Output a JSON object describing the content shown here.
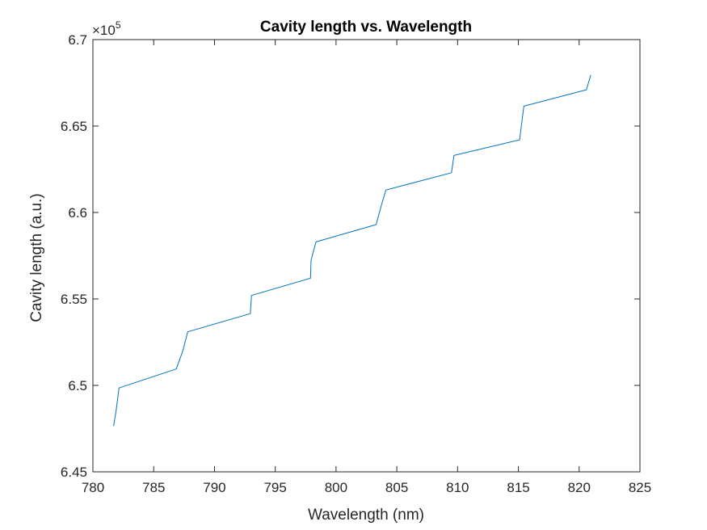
{
  "chart_data": {
    "type": "line",
    "title": "Cavity length vs. Wavelength",
    "xlabel": "Wavelength (nm)",
    "ylabel": "Cavity length (a.u.)",
    "xlim": [
      780,
      825
    ],
    "ylim": [
      645000,
      670000
    ],
    "xticks": [
      780,
      785,
      790,
      795,
      800,
      805,
      810,
      815,
      820,
      825
    ],
    "xtick_labels": [
      "780",
      "785",
      "790",
      "795",
      "800",
      "805",
      "810",
      "815",
      "820",
      "825"
    ],
    "yticks": [
      645000,
      650000,
      655000,
      660000,
      665000,
      670000
    ],
    "ytick_labels": [
      "6.45",
      "6.5",
      "6.55",
      "6.6",
      "6.65",
      "6.7"
    ],
    "y_exponent": {
      "base": "×10",
      "power": "5"
    },
    "grid": false,
    "line_color": "#0072BD",
    "series": [
      {
        "x": [
          781.7,
          781.9,
          782.15,
          786.85,
          787.4,
          787.8,
          792.95,
          793.05,
          797.9,
          797.95,
          798.35,
          803.3,
          803.7,
          804.1,
          809.5,
          809.7,
          815.1,
          815.45,
          820.6,
          820.95
        ],
        "y": [
          647650,
          648500,
          649850,
          650950,
          652000,
          653100,
          654150,
          655200,
          656200,
          657250,
          658300,
          659300,
          660350,
          661300,
          662300,
          663300,
          664200,
          666150,
          667100,
          667950
        ]
      }
    ]
  }
}
